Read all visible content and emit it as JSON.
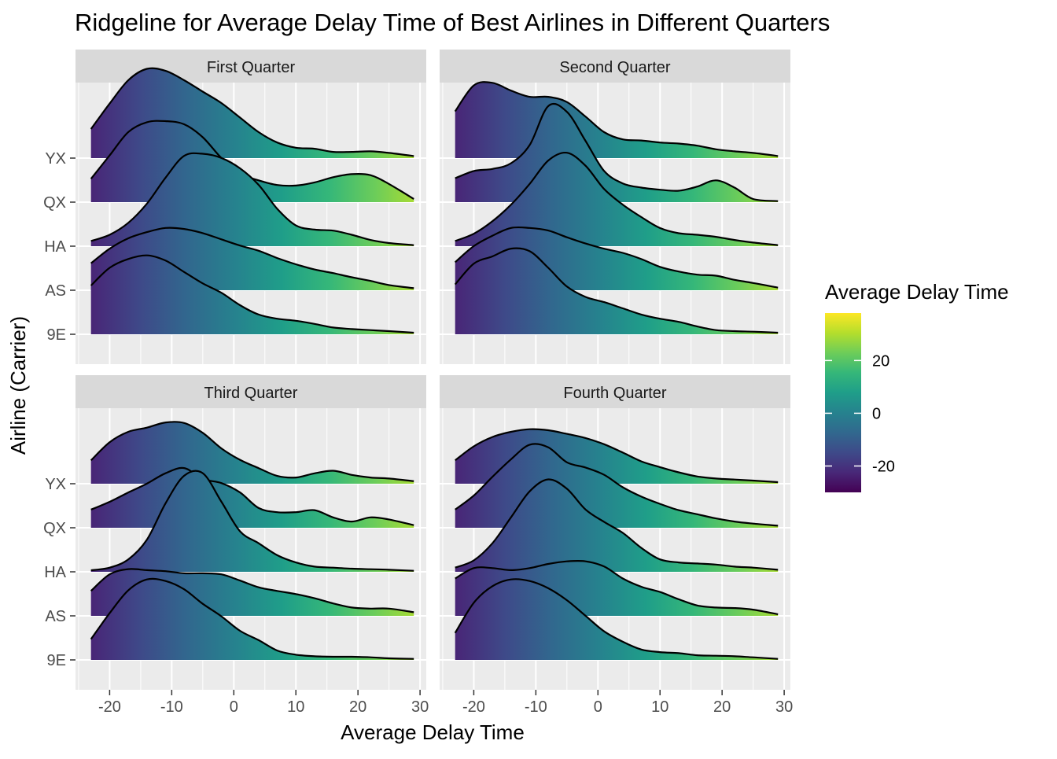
{
  "chart_data": {
    "type": "ridgeline",
    "title": "Ridgeline for Average Delay Time of Best Airlines in Different Quarters",
    "xlabel": "Average Delay Time",
    "ylabel": "Airline (Carrier)",
    "xlim": [
      -25.5,
      31
    ],
    "x_ticks": [
      -20,
      -10,
      0,
      10,
      20,
      30
    ],
    "x_tick_labels": [
      "-20",
      "-10",
      "0",
      "10",
      "20",
      "30"
    ],
    "categories": [
      "9E",
      "AS",
      "HA",
      "QX",
      "YX"
    ],
    "grid": true,
    "legend": {
      "title": "Average Delay Time",
      "position": "right",
      "range": [
        -30,
        38
      ],
      "ticks": [
        -20,
        0,
        20
      ],
      "tick_labels": [
        "-20",
        "0",
        "20"
      ],
      "colors": [
        "#440154",
        "#482878",
        "#3e4a89",
        "#31688e",
        "#26828e",
        "#1f9e89",
        "#35b779",
        "#6dcd59",
        "#b4de2c",
        "#fde725"
      ]
    },
    "facets": [
      {
        "name": "First Quarter",
        "series": [
          {
            "name": "9E",
            "x": [
              -23,
              -20,
              -17,
              -14,
              -11,
              -8,
              -5,
              -2,
              1,
              4,
              7,
              10,
              13,
              16,
              19,
              22,
              25,
              29
            ],
            "density": [
              0.94,
              1.28,
              1.45,
              1.52,
              1.42,
              1.2,
              0.98,
              0.8,
              0.56,
              0.38,
              0.3,
              0.26,
              0.2,
              0.13,
              0.1,
              0.08,
              0.06,
              0.03
            ]
          },
          {
            "name": "AS",
            "x": [
              -23,
              -20,
              -17,
              -14,
              -11,
              -8,
              -5,
              -2,
              1,
              4,
              7,
              10,
              13,
              16,
              19,
              22,
              25,
              29
            ],
            "density": [
              0.52,
              0.8,
              1.0,
              1.12,
              1.2,
              1.18,
              1.1,
              0.98,
              0.86,
              0.76,
              0.62,
              0.5,
              0.4,
              0.33,
              0.25,
              0.18,
              0.1,
              0.04
            ]
          },
          {
            "name": "HA",
            "x": [
              -23,
              -20,
              -17,
              -14,
              -11,
              -8,
              -5,
              -2,
              1,
              4,
              7,
              10,
              13,
              16,
              19,
              22,
              25,
              29
            ],
            "density": [
              0.1,
              0.22,
              0.45,
              0.82,
              1.32,
              1.74,
              1.78,
              1.7,
              1.5,
              1.18,
              0.72,
              0.4,
              0.32,
              0.3,
              0.22,
              0.12,
              0.06,
              0.02
            ]
          },
          {
            "name": "QX",
            "x": [
              -23,
              -20,
              -17,
              -14,
              -11,
              -8,
              -5,
              -2,
              1,
              4,
              7,
              10,
              13,
              16,
              19,
              22,
              25,
              29
            ],
            "density": [
              0.45,
              0.9,
              1.35,
              1.54,
              1.56,
              1.5,
              1.25,
              0.85,
              0.55,
              0.42,
              0.33,
              0.32,
              0.38,
              0.48,
              0.54,
              0.52,
              0.35,
              0.06
            ]
          },
          {
            "name": "YX",
            "x": [
              -23,
              -20,
              -17,
              -14,
              -11,
              -8,
              -5,
              -2,
              1,
              4,
              7,
              10,
              13,
              16,
              19,
              22,
              25,
              29
            ],
            "density": [
              0.56,
              1.05,
              1.5,
              1.72,
              1.68,
              1.5,
              1.28,
              1.06,
              0.78,
              0.5,
              0.3,
              0.2,
              0.18,
              0.12,
              0.12,
              0.13,
              0.1,
              0.04
            ]
          }
        ]
      },
      {
        "name": "Second Quarter",
        "series": [
          {
            "name": "9E",
            "x": [
              -23,
              -20,
              -17,
              -14,
              -11,
              -8,
              -5,
              -2,
              1,
              4,
              7,
              10,
              13,
              16,
              19,
              22,
              25,
              29
            ],
            "density": [
              0.96,
              1.36,
              1.5,
              1.65,
              1.6,
              1.28,
              0.92,
              0.72,
              0.62,
              0.5,
              0.38,
              0.3,
              0.24,
              0.15,
              0.08,
              0.06,
              0.05,
              0.03
            ]
          },
          {
            "name": "AS",
            "x": [
              -23,
              -20,
              -17,
              -14,
              -11,
              -8,
              -5,
              -2,
              1,
              4,
              7,
              10,
              13,
              16,
              19,
              22,
              25,
              29
            ],
            "density": [
              0.54,
              0.85,
              1.05,
              1.2,
              1.2,
              1.15,
              1.02,
              0.9,
              0.8,
              0.72,
              0.6,
              0.45,
              0.36,
              0.3,
              0.28,
              0.2,
              0.14,
              0.05
            ]
          },
          {
            "name": "HA",
            "x": [
              -23,
              -20,
              -17,
              -14,
              -11,
              -8,
              -5,
              -2,
              1,
              4,
              7,
              10,
              13,
              16,
              19,
              22,
              25,
              29
            ],
            "density": [
              0.1,
              0.24,
              0.48,
              0.8,
              1.2,
              1.65,
              1.8,
              1.55,
              1.1,
              0.8,
              0.56,
              0.35,
              0.25,
              0.22,
              0.18,
              0.12,
              0.07,
              0.02
            ]
          },
          {
            "name": "QX",
            "x": [
              -23,
              -20,
              -17,
              -14,
              -11,
              -8,
              -5,
              -2,
              1,
              4,
              7,
              10,
              13,
              16,
              19,
              22,
              25,
              29
            ],
            "density": [
              0.46,
              0.6,
              0.64,
              0.75,
              1.1,
              1.85,
              1.74,
              1.18,
              0.6,
              0.36,
              0.28,
              0.24,
              0.22,
              0.3,
              0.42,
              0.28,
              0.06,
              0.02
            ]
          },
          {
            "name": "YX",
            "x": [
              -23,
              -20,
              -17,
              -14,
              -11,
              -8,
              -5,
              -2,
              1,
              4,
              7,
              10,
              13,
              16,
              19,
              22,
              25,
              29
            ],
            "density": [
              0.9,
              1.4,
              1.45,
              1.3,
              1.18,
              1.18,
              1.08,
              0.8,
              0.5,
              0.36,
              0.34,
              0.3,
              0.28,
              0.24,
              0.17,
              0.13,
              0.1,
              0.04
            ]
          }
        ]
      },
      {
        "name": "Third Quarter",
        "series": [
          {
            "name": "9E",
            "x": [
              -23,
              -20,
              -17,
              -14,
              -11,
              -8,
              -5,
              -2,
              1,
              4,
              7,
              10,
              13,
              16,
              19,
              22,
              25,
              29
            ],
            "density": [
              0.4,
              0.9,
              1.34,
              1.55,
              1.52,
              1.36,
              1.08,
              0.84,
              0.56,
              0.38,
              0.18,
              0.1,
              0.07,
              0.06,
              0.06,
              0.05,
              0.03,
              0.02
            ]
          },
          {
            "name": "AS",
            "x": [
              -23,
              -20,
              -17,
              -14,
              -11,
              -8,
              -5,
              -2,
              1,
              4,
              7,
              10,
              13,
              16,
              19,
              22,
              25,
              29
            ],
            "density": [
              0.48,
              0.8,
              0.9,
              0.88,
              0.86,
              0.82,
              0.82,
              0.8,
              0.68,
              0.55,
              0.48,
              0.42,
              0.34,
              0.24,
              0.16,
              0.14,
              0.14,
              0.07
            ]
          },
          {
            "name": "HA",
            "x": [
              -23,
              -20,
              -17,
              -14,
              -11,
              -8,
              -5,
              -2,
              1,
              4,
              7,
              10,
              13,
              16,
              19,
              22,
              25,
              29
            ],
            "density": [
              0.03,
              0.08,
              0.24,
              0.62,
              1.32,
              1.85,
              1.9,
              1.35,
              0.78,
              0.55,
              0.32,
              0.18,
              0.1,
              0.08,
              0.06,
              0.05,
              0.04,
              0.02
            ]
          },
          {
            "name": "QX",
            "x": [
              -23,
              -20,
              -17,
              -14,
              -11,
              -8,
              -5,
              -2,
              1,
              4,
              7,
              10,
              13,
              16,
              19,
              22,
              25,
              29
            ],
            "density": [
              0.35,
              0.5,
              0.68,
              0.85,
              1.05,
              1.15,
              0.94,
              0.86,
              0.68,
              0.38,
              0.3,
              0.3,
              0.34,
              0.2,
              0.12,
              0.2,
              0.16,
              0.05
            ]
          },
          {
            "name": "YX",
            "x": [
              -23,
              -20,
              -17,
              -14,
              -11,
              -8,
              -5,
              -2,
              1,
              4,
              7,
              10,
              13,
              16,
              19,
              22,
              25,
              29
            ],
            "density": [
              0.45,
              0.8,
              1.0,
              1.08,
              1.18,
              1.17,
              0.98,
              0.68,
              0.46,
              0.3,
              0.15,
              0.12,
              0.2,
              0.25,
              0.17,
              0.12,
              0.1,
              0.05
            ]
          }
        ]
      },
      {
        "name": "Fourth Quarter",
        "series": [
          {
            "name": "9E",
            "x": [
              -23,
              -20,
              -17,
              -14,
              -11,
              -8,
              -5,
              -2,
              1,
              4,
              7,
              10,
              13,
              16,
              19,
              22,
              25,
              29
            ],
            "density": [
              0.52,
              1.1,
              1.42,
              1.55,
              1.52,
              1.38,
              1.15,
              0.85,
              0.55,
              0.35,
              0.2,
              0.15,
              0.13,
              0.09,
              0.08,
              0.07,
              0.05,
              0.02
            ]
          },
          {
            "name": "AS",
            "x": [
              -23,
              -20,
              -17,
              -14,
              -11,
              -8,
              -5,
              -2,
              1,
              4,
              7,
              10,
              13,
              16,
              19,
              22,
              25,
              29
            ],
            "density": [
              0.72,
              0.92,
              0.92,
              0.88,
              0.92,
              1.0,
              1.05,
              1.05,
              0.95,
              0.72,
              0.56,
              0.46,
              0.32,
              0.2,
              0.16,
              0.15,
              0.12,
              0.03
            ]
          },
          {
            "name": "HA",
            "x": [
              -23,
              -20,
              -17,
              -14,
              -11,
              -8,
              -5,
              -2,
              1,
              4,
              7,
              10,
              13,
              16,
              19,
              22,
              25,
              29
            ],
            "density": [
              0.08,
              0.22,
              0.55,
              1.05,
              1.55,
              1.78,
              1.6,
              1.2,
              0.96,
              0.75,
              0.46,
              0.24,
              0.18,
              0.16,
              0.14,
              0.1,
              0.08,
              0.04
            ]
          },
          {
            "name": "QX",
            "x": [
              -23,
              -20,
              -17,
              -14,
              -11,
              -8,
              -5,
              -2,
              1,
              4,
              7,
              10,
              13,
              16,
              19,
              22,
              25,
              29
            ],
            "density": [
              0.35,
              0.62,
              0.98,
              1.32,
              1.6,
              1.55,
              1.26,
              1.16,
              1.02,
              0.78,
              0.6,
              0.46,
              0.34,
              0.26,
              0.18,
              0.12,
              0.08,
              0.04
            ]
          },
          {
            "name": "YX",
            "x": [
              -23,
              -20,
              -17,
              -14,
              -11,
              -8,
              -5,
              -2,
              1,
              4,
              7,
              10,
              13,
              16,
              19,
              22,
              25,
              29
            ],
            "density": [
              0.45,
              0.72,
              0.9,
              1.0,
              1.05,
              1.03,
              0.96,
              0.88,
              0.76,
              0.6,
              0.43,
              0.32,
              0.22,
              0.14,
              0.1,
              0.08,
              0.06,
              0.03
            ]
          }
        ]
      }
    ]
  }
}
